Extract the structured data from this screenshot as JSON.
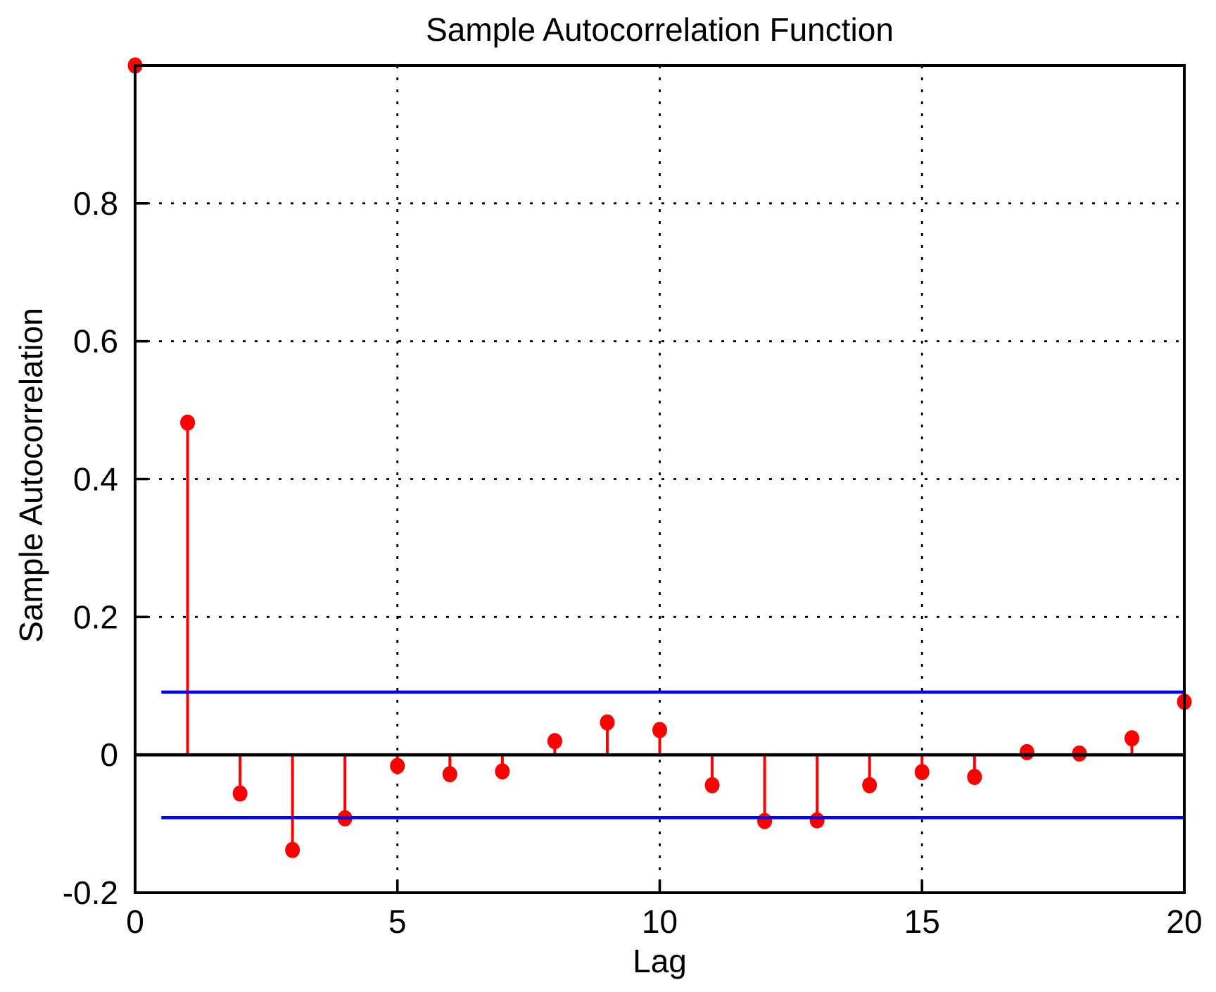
{
  "chart_data": {
    "type": "stem",
    "title": "Sample Autocorrelation Function",
    "xlabel": "Lag",
    "ylabel": "Sample Autocorrelation",
    "xlim": [
      0,
      20
    ],
    "ylim": [
      -0.2,
      1.0
    ],
    "xticks": [
      0,
      5,
      10,
      15,
      20
    ],
    "xtick_labels": [
      "0",
      "5",
      "10",
      "15",
      "20"
    ],
    "yticks": [
      -0.2,
      0,
      0.2,
      0.4,
      0.6,
      0.8
    ],
    "ytick_labels": [
      "-0.2",
      "0",
      "0.2",
      "0.4",
      "0.6",
      "0.8"
    ],
    "grid": true,
    "legend": "none",
    "lags": [
      0,
      1,
      2,
      3,
      4,
      5,
      6,
      7,
      8,
      9,
      10,
      11,
      12,
      13,
      14,
      15,
      16,
      17,
      18,
      19,
      20
    ],
    "acf_values": [
      1.0,
      0.482,
      -0.056,
      -0.138,
      -0.092,
      -0.016,
      -0.028,
      -0.024,
      0.02,
      0.047,
      0.036,
      -0.044,
      -0.096,
      -0.095,
      -0.044,
      -0.025,
      -0.032,
      0.004,
      0.002,
      0.024,
      0.077
    ],
    "zero_line": 0,
    "confidence_bounds": {
      "upper": 0.091,
      "lower": -0.091,
      "start_lag": 0.5,
      "end_lag": 20
    },
    "colors": {
      "stem": "#ff0000",
      "bounds": "#0000ff",
      "axis": "#000000",
      "grid": "#000000",
      "background": "#ffffff"
    }
  }
}
